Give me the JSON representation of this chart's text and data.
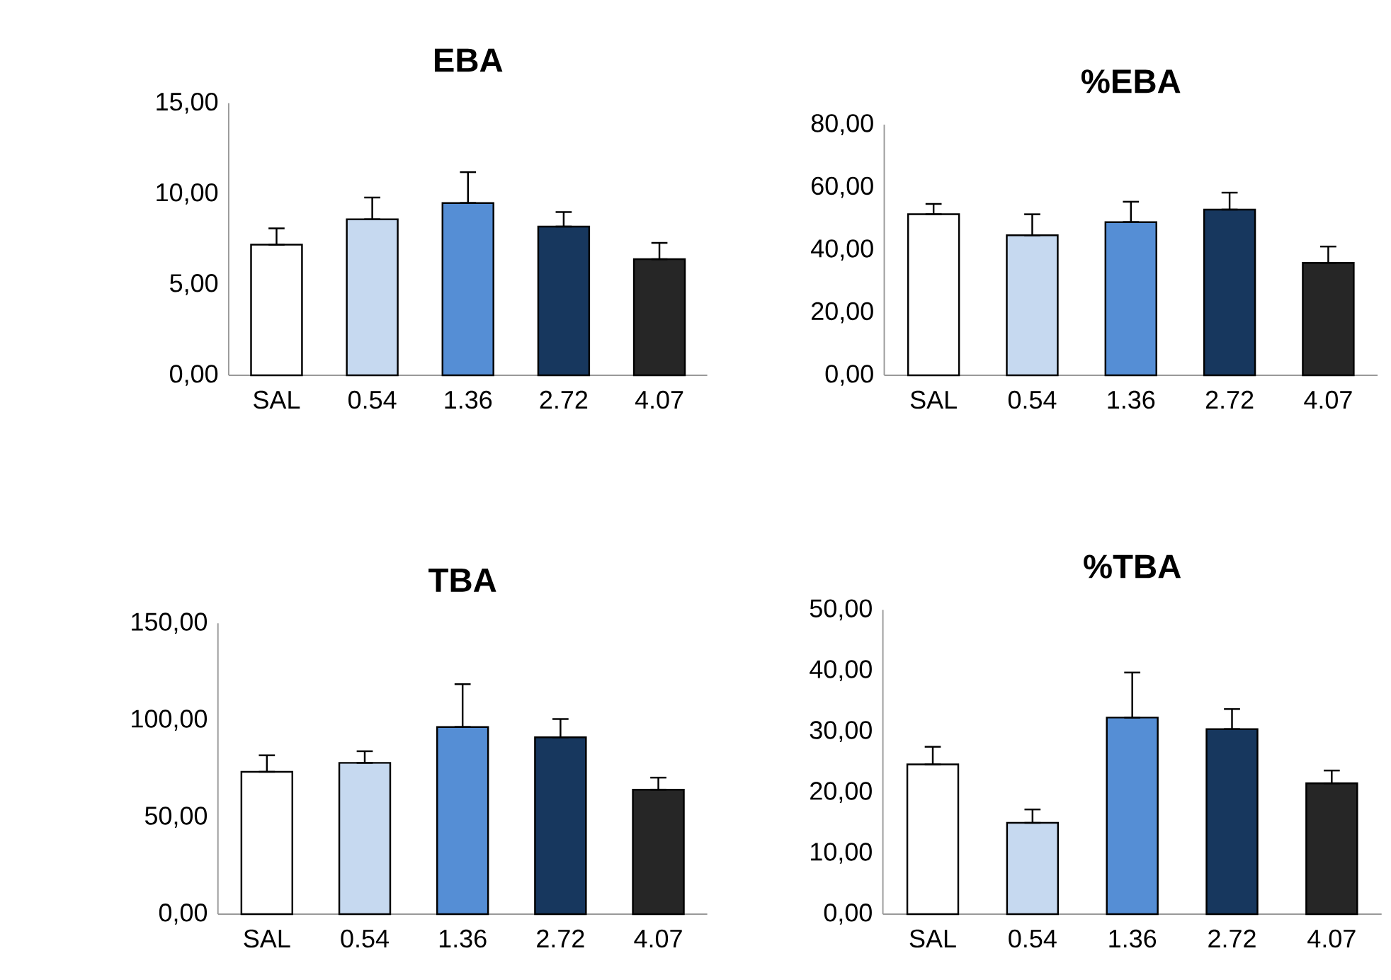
{
  "chart_data": [
    {
      "type": "bar",
      "title": "EBA",
      "categories": [
        "SAL",
        "0.54",
        "1.36",
        "2.72",
        "4.07"
      ],
      "values": [
        7.2,
        8.6,
        9.5,
        8.2,
        6.4
      ],
      "colors": [
        "#ffffff",
        "#c6d9f0",
        "#558ed5",
        "#17375e",
        "#262626"
      ],
      "errors": [
        [
          7.2,
          8.1
        ],
        [
          8.6,
          9.8
        ],
        [
          9.5,
          11.2
        ],
        [
          8.2,
          9.0
        ],
        [
          6.4,
          7.3
        ]
      ],
      "ylim": [
        0,
        15
      ],
      "yticks": [
        {
          "value": 0,
          "label": "0,00"
        },
        {
          "value": 5,
          "label": "5,00"
        },
        {
          "value": 10,
          "label": "10,00"
        },
        {
          "value": 15,
          "label": "15,00"
        }
      ]
    },
    {
      "type": "bar",
      "title": "%EBA",
      "categories": [
        "SAL",
        "0.54",
        "1.36",
        "2.72",
        "4.07"
      ],
      "values": [
        51.4,
        44.7,
        48.9,
        52.9,
        35.9
      ],
      "colors": [
        "#ffffff",
        "#c6d9f0",
        "#558ed5",
        "#17375e",
        "#262626"
      ],
      "errors": [
        [
          51.4,
          54.7
        ],
        [
          44.7,
          51.4
        ],
        [
          48.9,
          55.4
        ],
        [
          52.9,
          58.3
        ],
        [
          35.9,
          41.1
        ]
      ],
      "ylim": [
        0,
        80
      ],
      "yticks": [
        {
          "value": 0,
          "label": "0,00"
        },
        {
          "value": 20,
          "label": "20,00"
        },
        {
          "value": 40,
          "label": "40,00"
        },
        {
          "value": 60,
          "label": "60,00"
        },
        {
          "value": 80,
          "label": "80,00"
        }
      ]
    },
    {
      "type": "bar",
      "title": "TBA",
      "categories": [
        "SAL",
        "0.54",
        "1.36",
        "2.72",
        "4.07"
      ],
      "values": [
        73.4,
        78.0,
        96.5,
        91.2,
        64.2
      ],
      "colors": [
        "#ffffff",
        "#c6d9f0",
        "#558ed5",
        "#17375e",
        "#262626"
      ],
      "errors": [
        [
          73.4,
          81.9
        ],
        [
          78.0,
          84.0
        ],
        [
          96.5,
          118.6
        ],
        [
          91.2,
          100.6
        ],
        [
          64.2,
          70.4
        ]
      ],
      "ylim": [
        0,
        150
      ],
      "yticks": [
        {
          "value": 0,
          "label": "0,00"
        },
        {
          "value": 50,
          "label": "50,00"
        },
        {
          "value": 100,
          "label": "100,00"
        },
        {
          "value": 150,
          "label": "150,00"
        }
      ]
    },
    {
      "type": "bar",
      "title": "%TBA",
      "categories": [
        "SAL",
        "0.54",
        "1.36",
        "2.72",
        "4.07"
      ],
      "values": [
        24.6,
        15.0,
        32.3,
        30.4,
        21.5
      ],
      "colors": [
        "#ffffff",
        "#c6d9f0",
        "#558ed5",
        "#17375e",
        "#262626"
      ],
      "errors": [
        [
          24.6,
          27.5
        ],
        [
          15.0,
          17.2
        ],
        [
          32.3,
          39.7
        ],
        [
          30.4,
          33.7
        ],
        [
          21.5,
          23.6
        ]
      ],
      "ylim": [
        0,
        50
      ],
      "yticks": [
        {
          "value": 0,
          "label": "0,00"
        },
        {
          "value": 10,
          "label": "10,00"
        },
        {
          "value": 20,
          "label": "20,00"
        },
        {
          "value": 30,
          "label": "30,00"
        },
        {
          "value": 40,
          "label": "40,00"
        },
        {
          "value": 50,
          "label": "50,00"
        }
      ]
    }
  ]
}
